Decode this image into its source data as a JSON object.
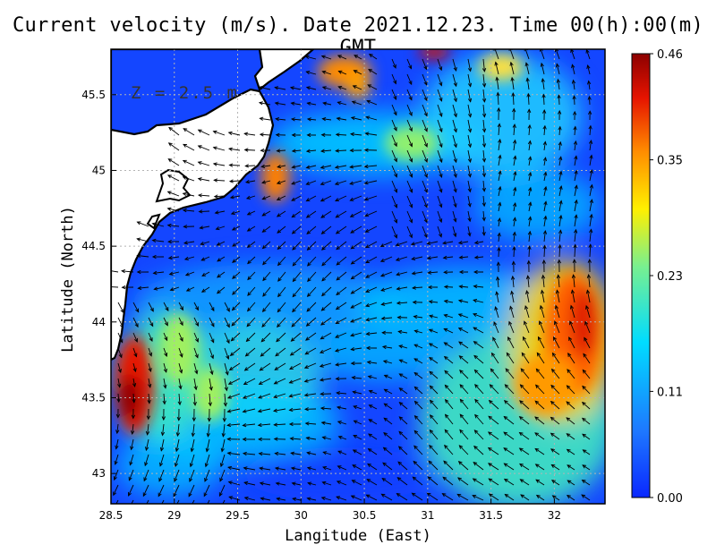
{
  "title": "Current velocity (m/s). Date 2021.12.23. Time 00(h):00(m) GMT",
  "depth_label": "Z = 2.5 m",
  "xlabel": "Langitude (East)",
  "ylabel": "Latitude (North)",
  "x_ticks": [
    "28.5",
    "29",
    "29.5",
    "30",
    "30.5",
    "31",
    "31.5",
    "32"
  ],
  "y_ticks": [
    "43",
    "43.5",
    "44",
    "44.5",
    "45",
    "45.5"
  ],
  "colorbar": {
    "ticks": [
      "0.00",
      "0.11",
      "0.23",
      "0.35",
      "0.46"
    ],
    "min": 0.0,
    "max": 0.46,
    "colors": [
      "#0a28ff",
      "#1e78ff",
      "#00dcff",
      "#78f090",
      "#fff000",
      "#ff8c00",
      "#e61400",
      "#8c0000"
    ]
  },
  "chart_data": {
    "type": "heatmap",
    "title": "Current velocity (m/s). Date 2021.12.23. Time 00(h):00(m) GMT",
    "xlabel": "Langitude (East)",
    "ylabel": "Latitude (North)",
    "xlim": [
      28.5,
      32.4
    ],
    "ylim": [
      42.8,
      45.8
    ],
    "value_range": [
      0.0,
      0.46
    ],
    "units": "m/s",
    "grid": true,
    "hotspots": [
      {
        "lon": 28.7,
        "lat": 43.5,
        "speed": 0.44
      },
      {
        "lon": 32.2,
        "lat": 44.0,
        "speed": 0.42
      },
      {
        "lon": 32.0,
        "lat": 43.6,
        "speed": 0.38
      },
      {
        "lon": 29.8,
        "lat": 45.0,
        "speed": 0.38
      },
      {
        "lon": 30.2,
        "lat": 45.65,
        "speed": 0.36
      },
      {
        "lon": 30.4,
        "lat": 45.5,
        "speed": 0.34
      },
      {
        "lon": 31.05,
        "lat": 45.78,
        "speed": 0.45
      },
      {
        "lon": 31.5,
        "lat": 45.6,
        "speed": 0.26
      },
      {
        "lon": 29.1,
        "lat": 43.9,
        "speed": 0.3
      },
      {
        "lon": 29.3,
        "lat": 43.5,
        "speed": 0.22
      }
    ]
  }
}
